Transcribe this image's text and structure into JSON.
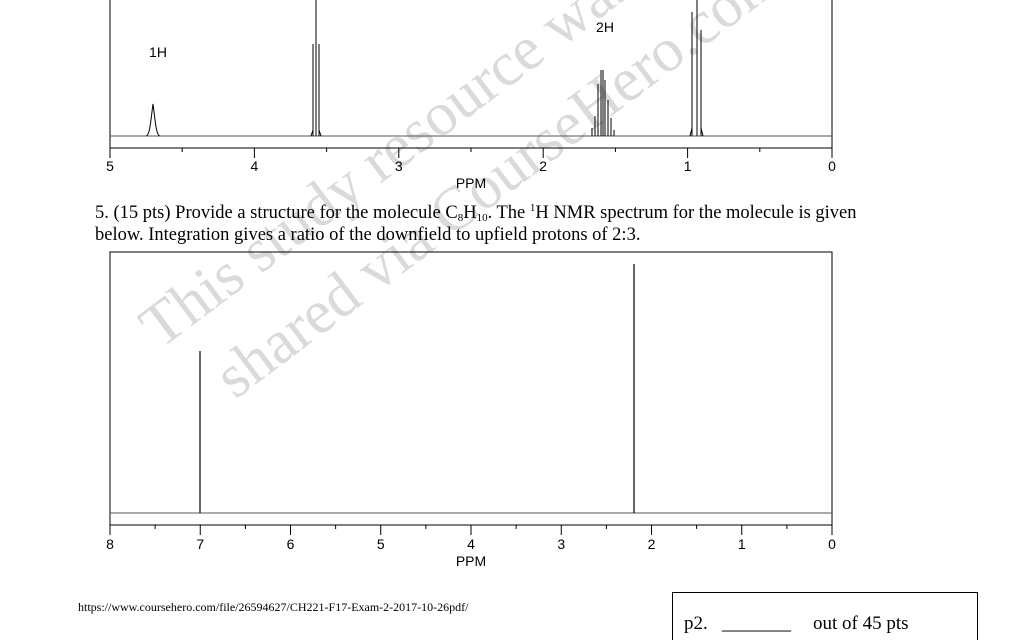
{
  "spectrum_top": {
    "integration_labels": [
      "1H",
      "2H"
    ],
    "x_ticks": [
      "5",
      "4",
      "3",
      "2",
      "1",
      "0"
    ],
    "x_axis_label": "PPM"
  },
  "question": {
    "intro": "5. (15 pts) Provide a structure for the molecule C",
    "c_sub": "8",
    "h_letter": "H",
    "h_sub": "10",
    "mid": ".  The ",
    "sup": "1",
    "rest": "H NMR spectrum for the molecule is given below.  Integration gives a ratio of the downfield to upfield protons of 2:3."
  },
  "spectrum_bottom": {
    "x_ticks": [
      "8",
      "7",
      "6",
      "5",
      "4",
      "3",
      "2",
      "1",
      "0"
    ],
    "x_axis_label": "PPM"
  },
  "chart_data": [
    {
      "type": "line",
      "xlabel": "PPM",
      "xlim": [
        5,
        0
      ],
      "xticks": [
        5,
        4,
        3,
        2,
        1,
        0
      ],
      "annotations": [
        {
          "text": "1H",
          "x": 4.7
        },
        {
          "text": "2H",
          "x": 1.6
        }
      ],
      "peaks": [
        {
          "x": 4.7,
          "multiplicity": "singlet",
          "relative_height": 0.2
        },
        {
          "x": 3.7,
          "multiplicity": "triplet",
          "relative_height": 0.9
        },
        {
          "x": 1.6,
          "multiplicity": "multiplet",
          "relative_height": 0.4
        },
        {
          "x": 0.95,
          "multiplicity": "triplet",
          "relative_height": 1.0
        }
      ]
    },
    {
      "type": "line",
      "xlabel": "PPM",
      "xlim": [
        8,
        0
      ],
      "xticks": [
        8,
        7,
        6,
        5,
        4,
        3,
        2,
        1,
        0
      ],
      "peaks": [
        {
          "x": 7.0,
          "multiplicity": "singlet",
          "relative_height": 0.62
        },
        {
          "x": 2.2,
          "multiplicity": "singlet",
          "relative_height": 1.0
        }
      ]
    }
  ],
  "footer": {
    "url": "https://www.coursehero.com/file/26594627/CH221-F17-Exam-2-2017-10-26pdf/",
    "page_label": "p2.",
    "blank": "________",
    "total": "out of 45 pts"
  },
  "watermark": {
    "line1": "This study resource was",
    "line2": "shared via CourseHero.com"
  }
}
